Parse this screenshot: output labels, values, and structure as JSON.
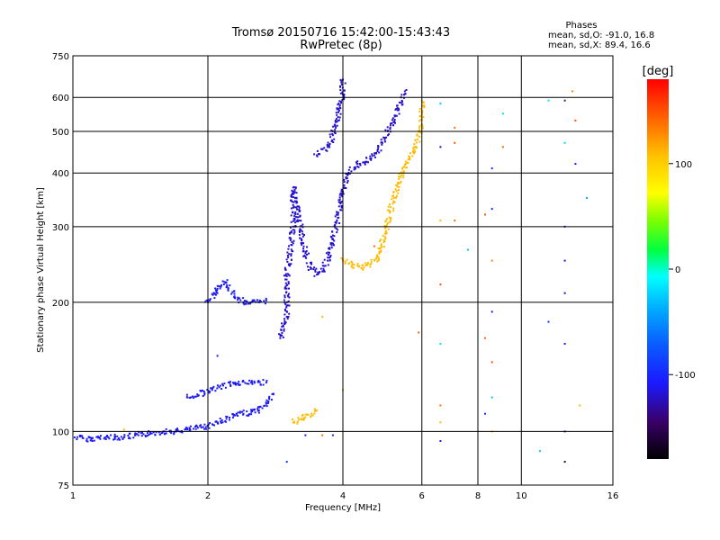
{
  "chart_data": {
    "type": "scatter",
    "title_line1": "Tromsø 20150716 15:42:00-15:43:43",
    "title_line2": "RwPretec (8p)",
    "stats": {
      "heading": "Phases",
      "line1": "mean, sd,O: -91.0, 16.8",
      "line2": "mean, sd,X:  89.4, 16.6"
    },
    "xlabel": "Frequency [MHz]",
    "ylabel": "Stationary phase Virtual Height [km]",
    "x_scale": "log",
    "y_scale": "log",
    "xlim": [
      1,
      16
    ],
    "ylim": [
      75,
      750
    ],
    "x_ticks": [
      1,
      2,
      4,
      6,
      8,
      10,
      16
    ],
    "x_tick_labels": [
      "1",
      "2",
      "4",
      "6",
      "8",
      "10",
      "16"
    ],
    "y_ticks": [
      75,
      100,
      200,
      300,
      400,
      500,
      600,
      750
    ],
    "y_tick_labels": [
      "75",
      "100",
      "200",
      "300",
      "400",
      "500",
      "600",
      "750"
    ],
    "grid": true,
    "colorbar": {
      "label": "[deg]",
      "range": [
        -180,
        180
      ],
      "ticks": [
        100,
        0,
        -100
      ],
      "tick_labels": [
        "100",
        "0",
        "-100"
      ]
    },
    "traces": [
      {
        "phase": -110,
        "points": [
          [
            1.0,
            97
          ],
          [
            1.1,
            96
          ],
          [
            1.2,
            97
          ],
          [
            1.3,
            97
          ],
          [
            1.4,
            98
          ],
          [
            1.5,
            99
          ],
          [
            1.6,
            100
          ],
          [
            1.7,
            100
          ],
          [
            1.8,
            101
          ],
          [
            1.9,
            102
          ],
          [
            2.0,
            103
          ],
          [
            2.1,
            105
          ],
          [
            2.2,
            107
          ],
          [
            2.3,
            109
          ],
          [
            2.4,
            110
          ],
          [
            2.5,
            111
          ],
          [
            2.6,
            112
          ],
          [
            2.7,
            116
          ],
          [
            2.8,
            122
          ]
        ]
      },
      {
        "phase": -110,
        "points": [
          [
            2.0,
            200
          ],
          [
            2.1,
            215
          ],
          [
            2.2,
            222
          ],
          [
            2.3,
            205
          ],
          [
            2.4,
            200
          ],
          [
            2.5,
            200
          ],
          [
            2.6,
            200
          ],
          [
            2.7,
            202
          ]
        ]
      },
      {
        "phase": -110,
        "points": [
          [
            1.8,
            120
          ],
          [
            2.3,
            130
          ],
          [
            2.5,
            130
          ],
          [
            2.7,
            130
          ]
        ]
      },
      {
        "phase": -120,
        "points": [
          [
            2.9,
            165
          ],
          [
            3.0,
            185
          ],
          [
            3.0,
            230
          ],
          [
            3.1,
            300
          ],
          [
            3.1,
            370
          ],
          [
            3.2,
            310
          ],
          [
            3.3,
            260
          ],
          [
            3.4,
            240
          ],
          [
            3.5,
            232
          ],
          [
            3.6,
            236
          ],
          [
            3.7,
            250
          ],
          [
            3.8,
            280
          ],
          [
            3.9,
            320
          ],
          [
            4.0,
            362
          ],
          [
            4.1,
            395
          ],
          [
            4.3,
            420
          ],
          [
            4.5,
            425
          ],
          [
            4.7,
            440
          ],
          [
            4.9,
            470
          ],
          [
            5.1,
            510
          ],
          [
            5.3,
            560
          ],
          [
            5.5,
            620
          ]
        ]
      },
      {
        "phase": -120,
        "points": [
          [
            3.5,
            440
          ],
          [
            3.7,
            460
          ],
          [
            3.8,
            490
          ],
          [
            3.9,
            540
          ],
          [
            4.0,
            610
          ],
          [
            4.0,
            660
          ]
        ]
      },
      {
        "phase": 110,
        "points": [
          [
            4.0,
            250
          ],
          [
            4.2,
            245
          ],
          [
            4.4,
            240
          ],
          [
            4.6,
            245
          ],
          [
            4.8,
            255
          ],
          [
            5.0,
            300
          ],
          [
            5.2,
            350
          ],
          [
            5.4,
            395
          ],
          [
            5.6,
            430
          ],
          [
            5.8,
            460
          ],
          [
            6.0,
            520
          ],
          [
            6.0,
            590
          ]
        ]
      },
      {
        "phase": 110,
        "points": [
          [
            3.1,
            105
          ],
          [
            3.3,
            108
          ],
          [
            3.5,
            112
          ]
        ]
      }
    ],
    "scattered_points": [
      {
        "x": 6.6,
        "y": 580,
        "phase": -30
      },
      {
        "x": 6.6,
        "y": 460,
        "phase": -120
      },
      {
        "x": 7.1,
        "y": 470,
        "phase": 150
      },
      {
        "x": 6.6,
        "y": 310,
        "phase": 110
      },
      {
        "x": 7.1,
        "y": 310,
        "phase": 140
      },
      {
        "x": 6.6,
        "y": 220,
        "phase": 150
      },
      {
        "x": 6.6,
        "y": 160,
        "phase": -20
      },
      {
        "x": 6.6,
        "y": 115,
        "phase": 140
      },
      {
        "x": 6.6,
        "y": 105,
        "phase": 110
      },
      {
        "x": 6.6,
        "y": 95,
        "phase": -110
      },
      {
        "x": 7.6,
        "y": 265,
        "phase": -30
      },
      {
        "x": 7.1,
        "y": 510,
        "phase": 140
      },
      {
        "x": 8.3,
        "y": 320,
        "phase": 150
      },
      {
        "x": 8.6,
        "y": 330,
        "phase": -100
      },
      {
        "x": 8.6,
        "y": 250,
        "phase": 130
      },
      {
        "x": 8.6,
        "y": 190,
        "phase": -110
      },
      {
        "x": 8.3,
        "y": 165,
        "phase": 140
      },
      {
        "x": 8.6,
        "y": 145,
        "phase": 150
      },
      {
        "x": 8.6,
        "y": 120,
        "phase": -30
      },
      {
        "x": 8.3,
        "y": 110,
        "phase": -100
      },
      {
        "x": 8.6,
        "y": 100,
        "phase": 110
      },
      {
        "x": 9.1,
        "y": 460,
        "phase": 140
      },
      {
        "x": 9.1,
        "y": 550,
        "phase": -20
      },
      {
        "x": 8.6,
        "y": 410,
        "phase": -100
      },
      {
        "x": 11.5,
        "y": 590,
        "phase": -20
      },
      {
        "x": 12.5,
        "y": 590,
        "phase": -120
      },
      {
        "x": 13.0,
        "y": 620,
        "phase": 130
      },
      {
        "x": 12.5,
        "y": 470,
        "phase": -20
      },
      {
        "x": 13.2,
        "y": 530,
        "phase": 150
      },
      {
        "x": 13.2,
        "y": 420,
        "phase": -110
      },
      {
        "x": 12.5,
        "y": 300,
        "phase": -110
      },
      {
        "x": 12.5,
        "y": 250,
        "phase": -120
      },
      {
        "x": 12.5,
        "y": 210,
        "phase": -120
      },
      {
        "x": 12.5,
        "y": 160,
        "phase": -110
      },
      {
        "x": 11.5,
        "y": 180,
        "phase": -100
      },
      {
        "x": 14.0,
        "y": 350,
        "phase": -40
      },
      {
        "x": 13.5,
        "y": 115,
        "phase": 110
      },
      {
        "x": 12.5,
        "y": 100,
        "phase": -100
      },
      {
        "x": 12.5,
        "y": 85,
        "phase": -160
      },
      {
        "x": 11.0,
        "y": 90,
        "phase": -30
      },
      {
        "x": 5.9,
        "y": 170,
        "phase": 140
      },
      {
        "x": 4.7,
        "y": 270,
        "phase": 140
      },
      {
        "x": 3.6,
        "y": 185,
        "phase": 110
      },
      {
        "x": 3.6,
        "y": 98,
        "phase": 140
      },
      {
        "x": 3.3,
        "y": 98,
        "phase": -110
      },
      {
        "x": 3.0,
        "y": 85,
        "phase": -100
      },
      {
        "x": 3.8,
        "y": 98,
        "phase": -100
      },
      {
        "x": 4.0,
        "y": 125,
        "phase": 110
      },
      {
        "x": 2.1,
        "y": 210,
        "phase": -110
      },
      {
        "x": 2.1,
        "y": 150,
        "phase": -110
      },
      {
        "x": 1.3,
        "y": 101,
        "phase": 110
      }
    ]
  }
}
